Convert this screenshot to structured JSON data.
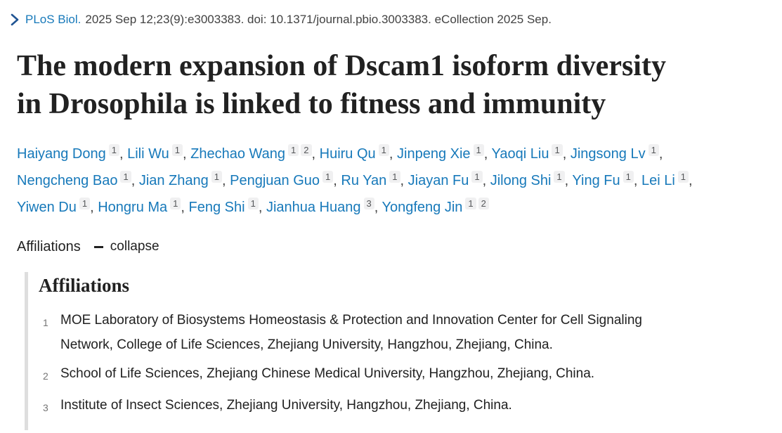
{
  "citation": {
    "journal": "PLoS Biol.",
    "meta": "2025 Sep 12;23(9):e3003383. doi: 10.1371/journal.pbio.3003383. eCollection 2025 Sep."
  },
  "title": "The modern expansion of Dscam1 isoform diversity in Drosophila is linked to fitness and immunity",
  "authors": [
    {
      "name": "Haiyang Dong",
      "affs": [
        "1"
      ]
    },
    {
      "name": "Lili Wu",
      "affs": [
        "1"
      ]
    },
    {
      "name": "Zhechao Wang",
      "affs": [
        "1",
        "2"
      ]
    },
    {
      "name": "Huiru Qu",
      "affs": [
        "1"
      ]
    },
    {
      "name": "Jinpeng Xie",
      "affs": [
        "1"
      ]
    },
    {
      "name": "Yaoqi Liu",
      "affs": [
        "1"
      ]
    },
    {
      "name": "Jingsong Lv",
      "affs": [
        "1"
      ]
    },
    {
      "name": "Nengcheng Bao",
      "affs": [
        "1"
      ]
    },
    {
      "name": "Jian Zhang",
      "affs": [
        "1"
      ]
    },
    {
      "name": "Pengjuan Guo",
      "affs": [
        "1"
      ]
    },
    {
      "name": "Ru Yan",
      "affs": [
        "1"
      ]
    },
    {
      "name": "Jiayan Fu",
      "affs": [
        "1"
      ]
    },
    {
      "name": "Jilong Shi",
      "affs": [
        "1"
      ]
    },
    {
      "name": "Ying Fu",
      "affs": [
        "1"
      ]
    },
    {
      "name": "Lei Li",
      "affs": [
        "1"
      ]
    },
    {
      "name": "Yiwen Du",
      "affs": [
        "1"
      ]
    },
    {
      "name": "Hongru Ma",
      "affs": [
        "1"
      ]
    },
    {
      "name": "Feng Shi",
      "affs": [
        "1"
      ]
    },
    {
      "name": "Jianhua Huang",
      "affs": [
        "3"
      ]
    },
    {
      "name": "Yongfeng Jin",
      "affs": [
        "1",
        "2"
      ]
    }
  ],
  "author_separator": ", ",
  "affiliations_toggle": {
    "label": "Affiliations",
    "action_label": "collapse",
    "icon": "minus-icon"
  },
  "affiliations": {
    "heading": "Affiliations",
    "items": [
      {
        "num": "1",
        "text": "MOE Laboratory of Biosystems Homeostasis & Protection and Innovation Center for Cell Signaling Network, College of Life Sciences, Zhejiang University, Hangzhou, Zhejiang, China."
      },
      {
        "num": "2",
        "text": "School of Life Sciences, Zhejiang Chinese Medical University, Hangzhou, Zhejiang, China."
      },
      {
        "num": "3",
        "text": "Institute of Insect Sciences, Zhejiang University, Hangzhou, Zhejiang, China."
      }
    ]
  },
  "icons": {
    "chevron": "chevron-right-icon",
    "collapse": "minus-icon"
  },
  "colors": {
    "link_blue": "#1779ba",
    "chevron_navy": "#205493",
    "title_dark": "#212121",
    "meta_gray": "#424242",
    "badge_bg": "#f0f0f1",
    "badge_text": "#56585a",
    "panel_bar_gray": "#dedede",
    "aff_num_gray": "#757575"
  }
}
